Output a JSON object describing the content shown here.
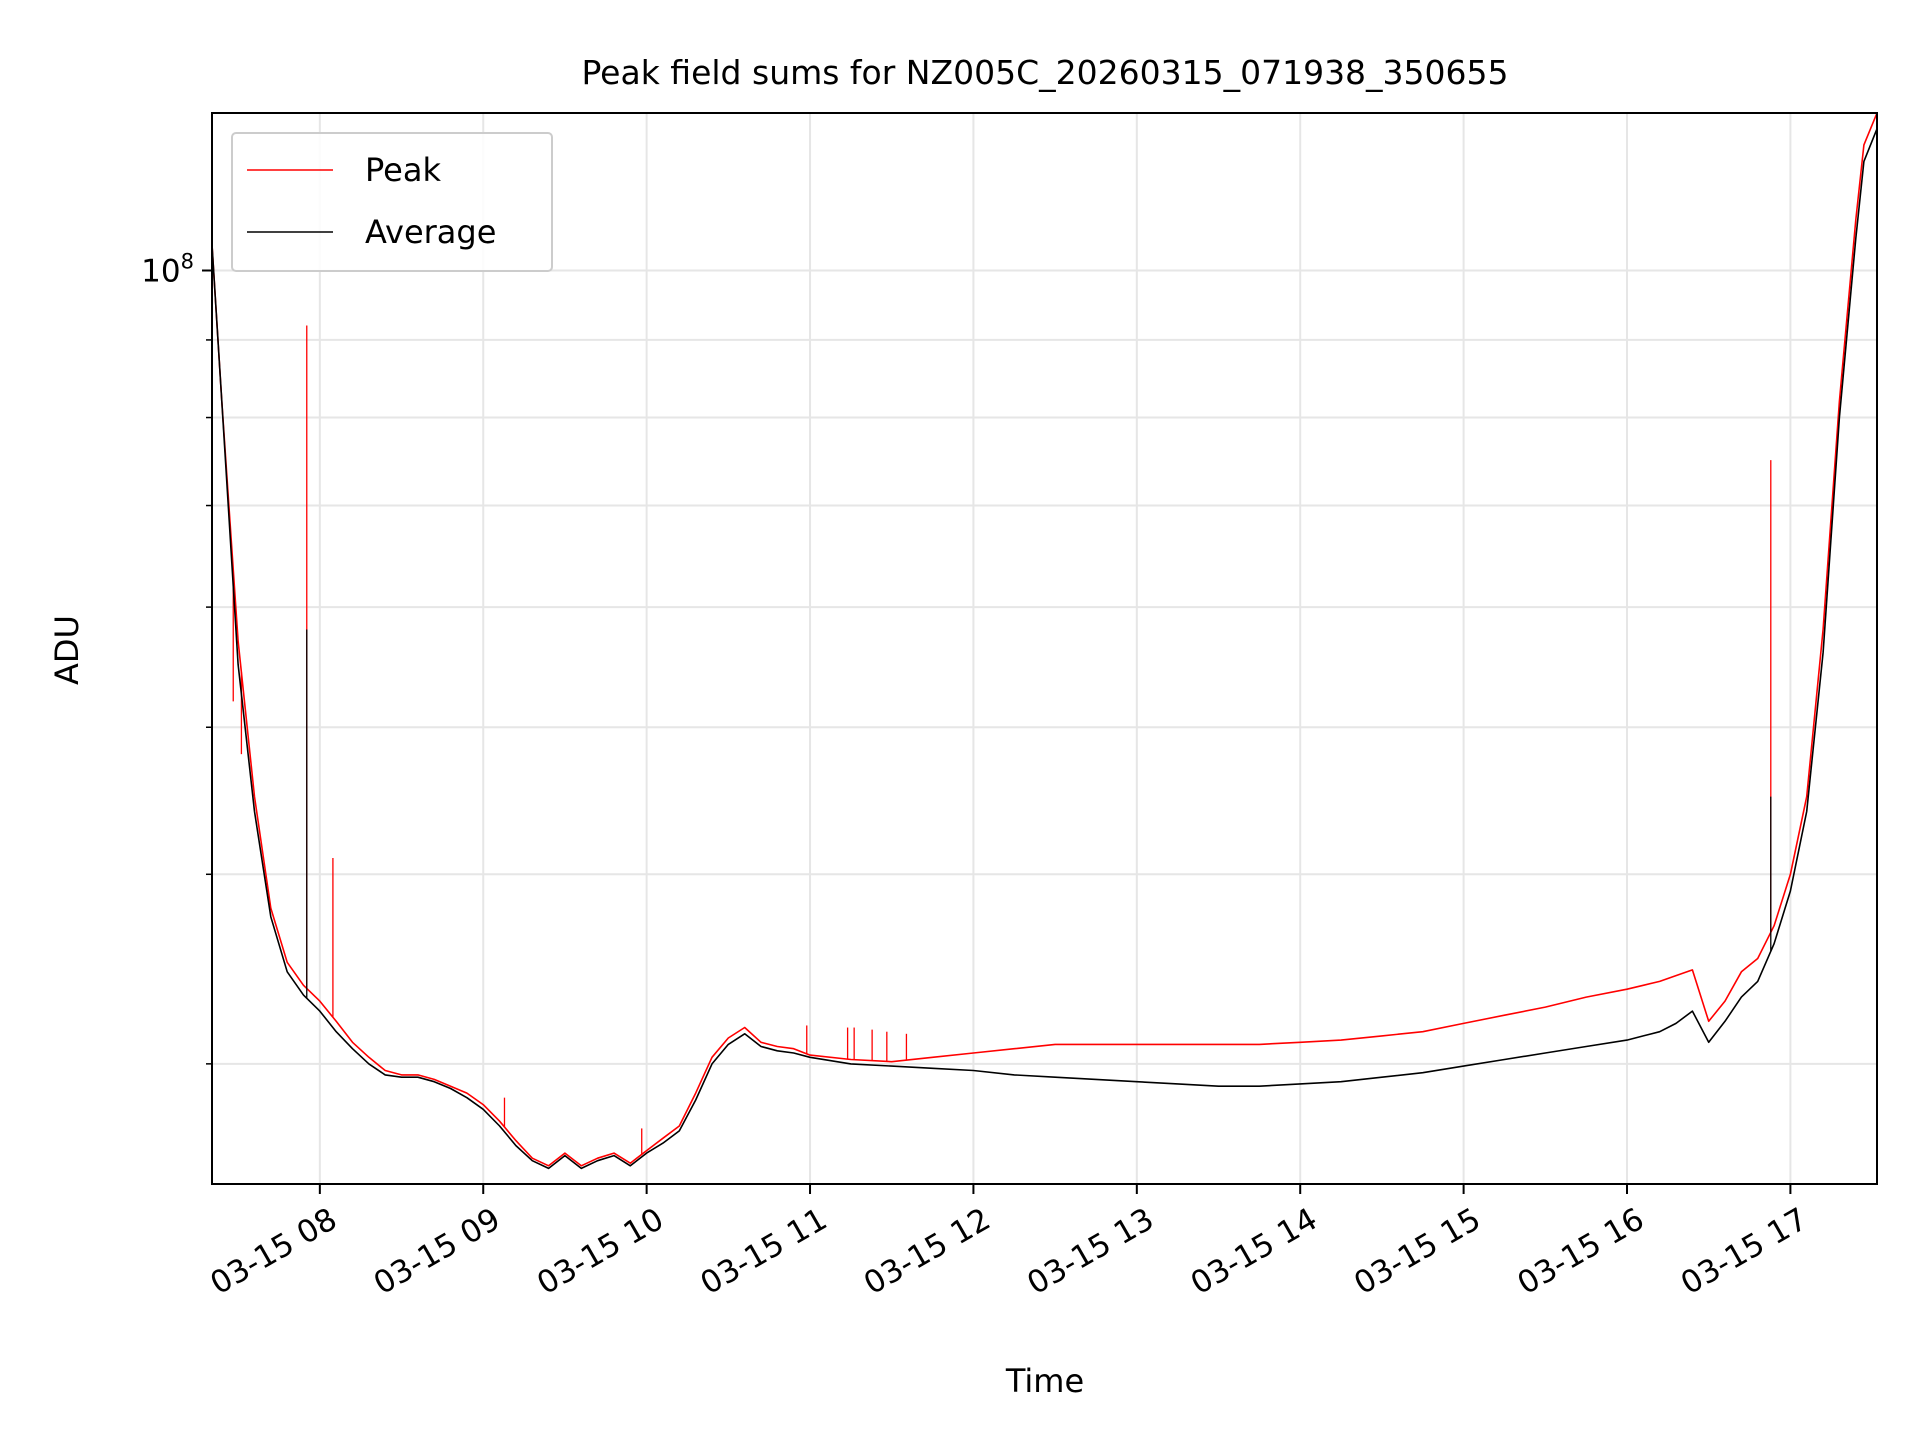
{
  "chart_data": {
    "type": "line",
    "title": "Peak field sums for NZ005C_20260315_071938_350655",
    "xlabel": "Time",
    "ylabel": "ADU",
    "y_scale": "log",
    "xlim_hours": [
      7.34,
      17.53
    ],
    "ylim": [
      25000000,
      127000000
    ],
    "y_major_ticks": [
      {
        "value": 100000000,
        "base": "10",
        "exp": "8"
      }
    ],
    "y_minor_ticks": [
      30000000,
      40000000,
      50000000,
      60000000,
      70000000,
      80000000,
      90000000
    ],
    "x_ticks": [
      {
        "value": 8,
        "label": "03-15 08"
      },
      {
        "value": 9,
        "label": "03-15 09"
      },
      {
        "value": 10,
        "label": "03-15 10"
      },
      {
        "value": 11,
        "label": "03-15 11"
      },
      {
        "value": 12,
        "label": "03-15 12"
      },
      {
        "value": 13,
        "label": "03-15 13"
      },
      {
        "value": 14,
        "label": "03-15 14"
      },
      {
        "value": 15,
        "label": "03-15 15"
      },
      {
        "value": 16,
        "label": "03-15 16"
      },
      {
        "value": 17,
        "label": "03-15 17"
      }
    ],
    "grid": true,
    "legend_position": "top-left",
    "series": [
      {
        "name": "Peak",
        "color": "#ff0000",
        "x": [
          7.34,
          7.4,
          7.5,
          7.6,
          7.7,
          7.8,
          7.9,
          8.0,
          8.1,
          8.2,
          8.3,
          8.4,
          8.5,
          8.6,
          8.7,
          8.8,
          8.9,
          9.0,
          9.1,
          9.2,
          9.3,
          9.4,
          9.5,
          9.6,
          9.7,
          9.8,
          9.9,
          10.0,
          10.1,
          10.2,
          10.3,
          10.4,
          10.5,
          10.6,
          10.7,
          10.8,
          10.9,
          11.0,
          11.25,
          11.5,
          11.75,
          12.0,
          12.25,
          12.5,
          12.75,
          13.0,
          13.25,
          13.5,
          13.75,
          14.0,
          14.25,
          14.5,
          14.75,
          15.0,
          15.25,
          15.5,
          15.75,
          16.0,
          16.1,
          16.2,
          16.3,
          16.4,
          16.5,
          16.6,
          16.7,
          16.8,
          16.9,
          17.0,
          17.1,
          17.2,
          17.3,
          17.4,
          17.45,
          17.53
        ],
        "values": [
          104000000,
          82000000,
          57000000,
          45000000,
          38000000,
          35000000,
          33800000,
          33000000,
          32000000,
          31000000,
          30300000,
          29700000,
          29500000,
          29500000,
          29300000,
          29000000,
          28700000,
          28200000,
          27500000,
          26700000,
          26000000,
          25700000,
          26200000,
          25700000,
          26000000,
          26200000,
          25800000,
          26300000,
          26800000,
          27300000,
          28700000,
          30300000,
          31200000,
          31700000,
          31000000,
          30800000,
          30700000,
          30400000,
          30200000,
          30100000,
          30300000,
          30500000,
          30700000,
          30900000,
          30900000,
          30900000,
          30900000,
          30900000,
          30900000,
          31000000,
          31100000,
          31300000,
          31500000,
          31900000,
          32300000,
          32700000,
          33200000,
          33600000,
          33800000,
          34000000,
          34300000,
          34600000,
          32000000,
          33000000,
          34500000,
          35200000,
          37000000,
          40000000,
          45000000,
          58000000,
          82000000,
          108000000,
          121000000,
          127000000
        ],
        "spikes": [
          {
            "x": 7.47,
            "value": 52000000
          },
          {
            "x": 7.52,
            "value": 48000000
          },
          {
            "x": 7.92,
            "value": 92000000
          },
          {
            "x": 8.08,
            "value": 41000000
          },
          {
            "x": 9.13,
            "value": 28500000
          },
          {
            "x": 9.97,
            "value": 27200000
          },
          {
            "x": 10.98,
            "value": 31800000
          },
          {
            "x": 11.23,
            "value": 31700000
          },
          {
            "x": 11.27,
            "value": 31700000
          },
          {
            "x": 11.38,
            "value": 31600000
          },
          {
            "x": 11.47,
            "value": 31500000
          },
          {
            "x": 11.59,
            "value": 31400000
          },
          {
            "x": 16.88,
            "value": 75000000
          }
        ]
      },
      {
        "name": "Average",
        "color": "#000000",
        "x": [
          7.34,
          7.4,
          7.5,
          7.6,
          7.7,
          7.8,
          7.9,
          8.0,
          8.1,
          8.2,
          8.3,
          8.4,
          8.5,
          8.6,
          8.7,
          8.8,
          8.9,
          9.0,
          9.1,
          9.2,
          9.3,
          9.4,
          9.5,
          9.6,
          9.7,
          9.8,
          9.9,
          10.0,
          10.1,
          10.2,
          10.3,
          10.4,
          10.5,
          10.6,
          10.7,
          10.8,
          10.9,
          11.0,
          11.25,
          11.5,
          11.75,
          12.0,
          12.25,
          12.5,
          12.75,
          13.0,
          13.25,
          13.5,
          13.75,
          14.0,
          14.25,
          14.5,
          14.75,
          15.0,
          15.25,
          15.5,
          15.75,
          16.0,
          16.1,
          16.2,
          16.3,
          16.4,
          16.5,
          16.6,
          16.7,
          16.8,
          16.9,
          17.0,
          17.1,
          17.2,
          17.3,
          17.4,
          17.45,
          17.53
        ],
        "values": [
          104000000,
          82000000,
          55000000,
          44000000,
          37500000,
          34500000,
          33300000,
          32500000,
          31500000,
          30700000,
          30000000,
          29500000,
          29400000,
          29400000,
          29200000,
          28900000,
          28500000,
          28000000,
          27300000,
          26500000,
          25900000,
          25600000,
          26100000,
          25600000,
          25900000,
          26100000,
          25700000,
          26200000,
          26600000,
          27100000,
          28400000,
          30000000,
          30900000,
          31400000,
          30800000,
          30600000,
          30500000,
          30300000,
          30000000,
          29900000,
          29800000,
          29700000,
          29500000,
          29400000,
          29300000,
          29200000,
          29100000,
          29000000,
          29000000,
          29100000,
          29200000,
          29400000,
          29600000,
          29900000,
          30200000,
          30500000,
          30800000,
          31100000,
          31300000,
          31500000,
          31900000,
          32500000,
          31000000,
          32000000,
          33200000,
          34000000,
          36000000,
          39000000,
          44000000,
          56000000,
          80000000,
          105000000,
          118000000,
          124000000
        ],
        "spikes": [
          {
            "x": 7.92,
            "value": 58000000
          },
          {
            "x": 16.88,
            "value": 45000000
          }
        ]
      }
    ]
  }
}
